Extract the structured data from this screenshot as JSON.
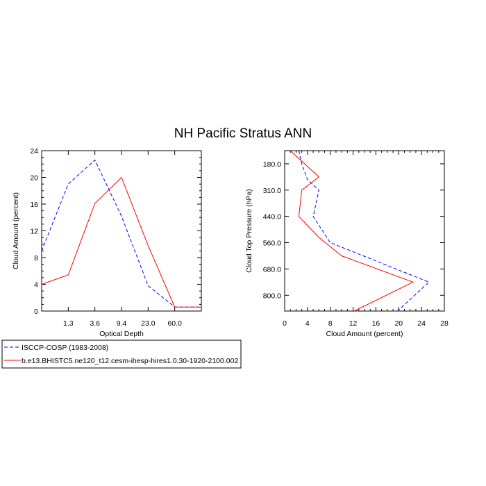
{
  "title": "NH Pacific Stratus ANN",
  "legend": [
    {
      "label": "ISCCP-COSP (1983-2008)",
      "color": "#0000ff",
      "dash": "dashed"
    },
    {
      "label": "b.e13.BHISTC5.ne120_t12.cesm-ihesp-hires1.0.30-1920-2100.002",
      "color": "#ff0000",
      "dash": "solid"
    }
  ],
  "chart_data": [
    {
      "type": "line",
      "xlabel": "Optical Depth",
      "ylabel": "Cloud Amount (percent)",
      "x_tick_labels": [
        "1.3",
        "3.6",
        "9.4",
        "23.0",
        "60.0"
      ],
      "x_tick_positions": [
        1,
        2,
        3,
        4,
        5
      ],
      "xlim": [
        0,
        6
      ],
      "ylim": [
        0,
        24
      ],
      "y_ticks": [
        0,
        4,
        8,
        12,
        16,
        20,
        24
      ],
      "series": [
        {
          "name": "ISCCP-COSP (1983-2008)",
          "x": [
            0,
            1,
            2,
            3,
            4,
            5,
            6
          ],
          "y": [
            9.0,
            19.0,
            22.6,
            14.2,
            3.8,
            0.6,
            0.6
          ]
        },
        {
          "name": "b.e13.BHISTC5.ne120_t12.cesm-ihesp-hires1.0.30-1920-2100.002",
          "x": [
            0,
            1,
            2,
            3,
            4,
            5,
            6
          ],
          "y": [
            4.0,
            5.4,
            16.1,
            20.0,
            9.8,
            0.6,
            0.6
          ]
        }
      ]
    },
    {
      "type": "line",
      "xlabel": "Cloud Amount (percent)",
      "ylabel": "Cloud Top Pressure (hPa)",
      "xlim": [
        0,
        28
      ],
      "x_ticks": [
        0,
        4,
        8,
        12,
        16,
        20,
        24,
        28
      ],
      "y_tick_labels": [
        "180.0",
        "310.0",
        "440.0",
        "560.0",
        "680.0",
        "800.0"
      ],
      "y_tick_positions": [
        1,
        2,
        3,
        4,
        5,
        6
      ],
      "ylim": [
        0.5,
        6.6
      ],
      "y_reversed": true,
      "series": [
        {
          "name": "ISCCP-COSP (1983-2008)",
          "x": [
            2.5,
            3.0,
            4.0,
            6.0,
            5.0,
            8.0,
            25.3,
            19.8
          ],
          "y": [
            0.5,
            1.0,
            1.6,
            2.0,
            3.0,
            4.0,
            5.5,
            6.6
          ]
        },
        {
          "name": "b.e13.BHISTC5.ne120_t12.cesm-ihesp-hires1.0.30-1920-2100.002",
          "x": [
            1.0,
            6.0,
            3.0,
            2.5,
            6.0,
            10.0,
            22.5,
            12.2
          ],
          "y": [
            0.5,
            1.5,
            2.0,
            3.0,
            3.8,
            4.5,
            5.5,
            6.6
          ]
        }
      ]
    }
  ]
}
